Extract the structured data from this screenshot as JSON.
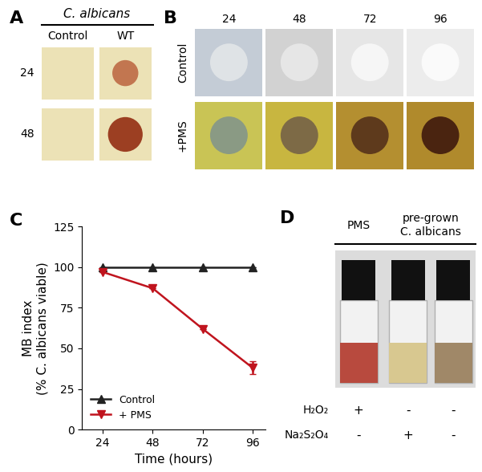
{
  "panel_A": {
    "panel": "A",
    "title": "C. albicans",
    "columns": [
      "Control",
      "WT"
    ],
    "rows": [
      "24",
      "48"
    ],
    "cells": [
      [
        {
          "bg": "#ece2b6",
          "spot": null
        },
        {
          "bg": "#ece2b6",
          "spot": "#c27650"
        }
      ],
      [
        {
          "bg": "#ece2b6",
          "spot": null
        },
        {
          "bg": "#ece2b6",
          "spot": "#9c3f22"
        }
      ]
    ]
  },
  "panel_B": {
    "panel": "B",
    "columns": [
      "24",
      "48",
      "72",
      "96"
    ],
    "rows": [
      "Control",
      "+PMS"
    ],
    "cells": [
      [
        {
          "bg": "#c4ccd6",
          "spot": "#dfe3e6"
        },
        {
          "bg": "#d2d2d2",
          "spot": "#e6e6e6"
        },
        {
          "bg": "#e6e6e6",
          "spot": "#f6f6f6"
        },
        {
          "bg": "#ececec",
          "spot": "#fafafa"
        }
      ],
      [
        {
          "bg": "#c9c455",
          "spot": "#8a9a84"
        },
        {
          "bg": "#c8b640",
          "spot": "#7d6a46"
        },
        {
          "bg": "#b48f30",
          "spot": "#5e3a1c"
        },
        {
          "bg": "#b08a2c",
          "spot": "#4a2410"
        }
      ]
    ]
  },
  "chart_data": {
    "panel": "C",
    "type": "line",
    "x": [
      24,
      48,
      72,
      96
    ],
    "xlim": [
      14,
      102
    ],
    "xticks": [
      24,
      48,
      72,
      96
    ],
    "ylim": [
      0,
      125
    ],
    "yticks": [
      0,
      25,
      50,
      75,
      100,
      125
    ],
    "x_label": "Time (hours)",
    "y_label": "MB index\n(% C. albicans viable)",
    "legend": "lower left",
    "series": [
      {
        "name": "Control",
        "color": "#222222",
        "marker": "^",
        "line_style": "solid",
        "values": [
          100,
          100,
          100,
          100
        ],
        "errors": [
          0,
          0,
          0,
          0
        ]
      },
      {
        "name": "+ PMS",
        "color": "#c0141e",
        "marker": "v",
        "line_style": "solid",
        "values": [
          97,
          87,
          62,
          38
        ],
        "errors": [
          0,
          0,
          0,
          4
        ]
      }
    ]
  },
  "panel_D": {
    "panel": "D",
    "headers": [
      "PMS",
      "pre-grown\nC. albicans"
    ],
    "colors": [
      "#b84a3e",
      "#d8c890",
      "#a08868"
    ],
    "rows": [
      {
        "label": "H₂O₂",
        "marks": [
          "+",
          "-",
          "-"
        ]
      },
      {
        "label": "Na₂S₂O₄",
        "marks": [
          "-",
          "+",
          "-"
        ]
      }
    ]
  }
}
